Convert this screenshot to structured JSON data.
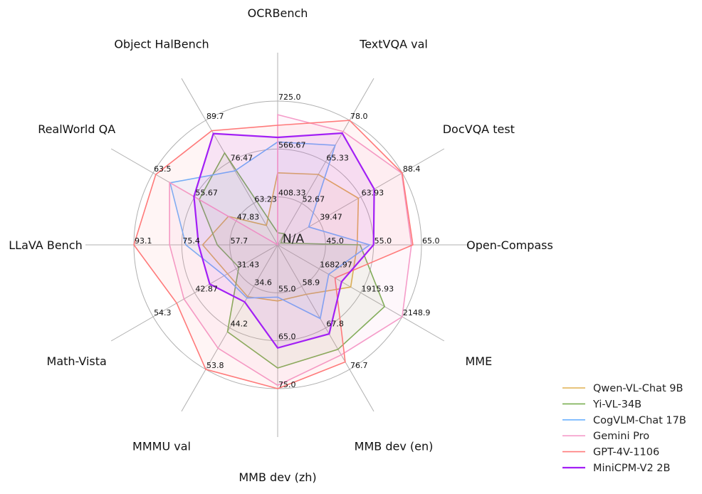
{
  "chart_data": {
    "type": "radar",
    "center_label": "N/A",
    "grid": true,
    "legend_position": "bottom-right",
    "axes": [
      {
        "name": "OCRBench",
        "range": [
          250,
          725
        ],
        "ticks": [
          "408.33",
          "566.67",
          "725.0"
        ]
      },
      {
        "name": "TextVQA val",
        "range": [
          40,
          78.0
        ],
        "ticks": [
          "52.67",
          "65.33",
          "78.0"
        ]
      },
      {
        "name": "DocVQA test",
        "range": [
          15,
          88.4
        ],
        "ticks": [
          "39.47",
          "63.93",
          "88.4"
        ]
      },
      {
        "name": "Open-Compass",
        "range": [
          35,
          65.0
        ],
        "ticks": [
          "45.0",
          "55.0",
          "65.0"
        ]
      },
      {
        "name": "MME",
        "range": [
          1450,
          2148.9
        ],
        "ticks": [
          "1682.97",
          "1915.93",
          "2148.9"
        ]
      },
      {
        "name": "MMB dev (en)",
        "range": [
          50,
          76.7
        ],
        "ticks": [
          "58.9",
          "67.8",
          "76.7"
        ]
      },
      {
        "name": "MMB dev (zh)",
        "range": [
          45,
          75.0
        ],
        "ticks": [
          "55.0",
          "65.0",
          "75.0"
        ]
      },
      {
        "name": "MMMU val",
        "range": [
          25,
          53.8
        ],
        "ticks": [
          "34.6",
          "44.2",
          "53.8"
        ]
      },
      {
        "name": "Math-Vista",
        "range": [
          20,
          54.3
        ],
        "ticks": [
          "31.43",
          "42.87",
          "54.3"
        ]
      },
      {
        "name": "LLaVA Bench",
        "range": [
          40,
          93.1
        ],
        "ticks": [
          "57.7",
          "75.4",
          "93.1"
        ]
      },
      {
        "name": "RealWorld QA",
        "range": [
          40,
          63.5
        ],
        "ticks": [
          "47.83",
          "55.67",
          "63.5"
        ]
      },
      {
        "name": "Object HalBench",
        "range": [
          50,
          89.7
        ],
        "ticks": [
          "63.23",
          "76.47",
          "89.7"
        ]
      }
    ],
    "series": [
      {
        "name": "Qwen-VL-Chat 9B",
        "color": "#e0b050",
        "values": [
          488,
          61.5,
          62.6,
          51.6,
          1860.0,
          60.6,
          56.7,
          37.0,
          33.8,
          67.7,
          49.3,
          56.2
        ]
      },
      {
        "name": "Yi-VL-34B",
        "color": "#7aaf52",
        "values": [
          290,
          43.4,
          16.9,
          52.2,
          2050.2,
          72.4,
          70.7,
          45.1,
          30.7,
          62.3,
          54.8,
          79.3
        ]
      },
      {
        "name": "CogVLM-Chat 17B",
        "color": "#6cb2ff",
        "values": [
          590,
          70.4,
          33.3,
          54.2,
          1736.6,
          65.8,
          55.9,
          37.3,
          34.7,
          73.9,
          60.3,
          73.6
        ]
      },
      {
        "name": "Gemini Pro",
        "color": "#f59cc9",
        "values": [
          680,
          74.6,
          88.1,
          62.9,
          2148.9,
          73.6,
          74.3,
          48.9,
          45.8,
          79.9,
          60.4,
          null
        ]
      },
      {
        "name": "GPT-4V-1106",
        "color": "#ff7a7a",
        "values": [
          645,
          78.0,
          88.4,
          63.2,
          1771.5,
          75.1,
          75.0,
          53.8,
          47.8,
          93.1,
          63.0,
          86.4
        ]
      },
      {
        "name": "MiniCPM-V2 2B",
        "color": "#a21ff5",
        "values": [
          605,
          74.1,
          71.9,
          55.0,
          1808.6,
          69.1,
          66.5,
          38.2,
          38.7,
          69.2,
          55.8,
          85.5
        ]
      }
    ]
  }
}
